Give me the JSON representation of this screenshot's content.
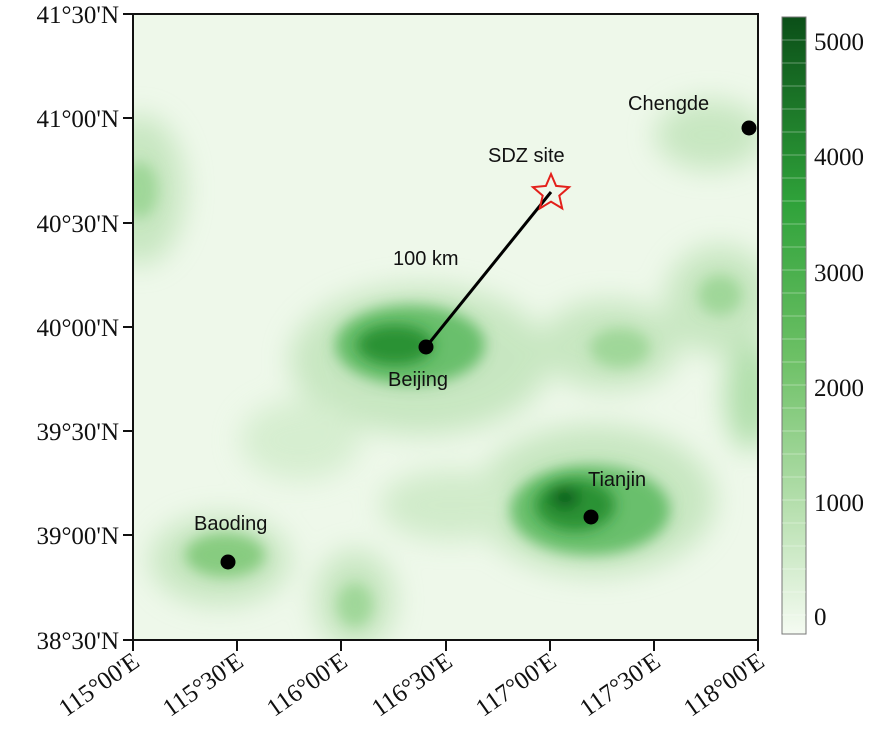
{
  "map": {
    "y_ticks": [
      "41°30'N",
      "41°00'N",
      "40°30'N",
      "40°00'N",
      "39°30'N",
      "39°00'N",
      "38°30'N"
    ],
    "x_ticks": [
      "115°00'E",
      "115°30'E",
      "116°00'E",
      "116°30'E",
      "117°00'E",
      "117°30'E",
      "118°00'E"
    ],
    "colors": {
      "background": "#eef8ea",
      "plume": "#1f9a2e",
      "dark": "#0d5a1c"
    }
  },
  "cities": [
    {
      "name": "Beijing",
      "lon": 116.41,
      "lat": 39.92
    },
    {
      "name": "Tianjin",
      "lon": 117.2,
      "lat": 39.09
    },
    {
      "name": "Baoding",
      "lon": 115.47,
      "lat": 38.87
    },
    {
      "name": "Chengde",
      "lon": 117.95,
      "lat": 40.97
    }
  ],
  "site": {
    "name": "SDZ site",
    "lon": 117.12,
    "lat": 40.65
  },
  "distance_label": "100 km",
  "colorbar": {
    "ticks": [
      "5000",
      "4000",
      "3000",
      "2000",
      "1000",
      "0"
    ],
    "range": [
      0,
      5200
    ]
  }
}
